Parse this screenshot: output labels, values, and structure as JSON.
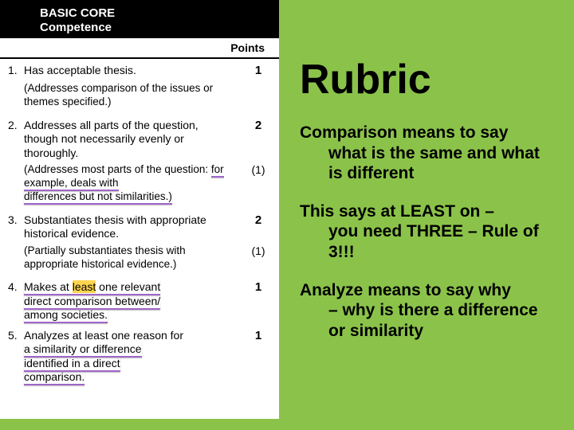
{
  "colors": {
    "accent_green": "#8bc34a",
    "underline_purple": "#a066c9",
    "highlight_yellow": "#ffd54f",
    "header_bg": "#000000",
    "header_text": "#ffffff"
  },
  "left": {
    "header_line1": "BASIC CORE",
    "header_line2": "Competence",
    "points_label": "Points",
    "items": [
      {
        "num": "1.",
        "text": "Has acceptable thesis.",
        "points": "1",
        "sub_text_a": "(Addresses comparison of the",
        "sub_text_b": "issues or themes specified.)",
        "sub_points": ""
      },
      {
        "num": "2.",
        "text": "Addresses all parts of the question, though not necessarily evenly or thoroughly.",
        "points": "2",
        "sub_text_a": "(Addresses most parts of the question:",
        "sub_text_b": "for example, deals with",
        "sub_text_c": "differences but not similarities.)",
        "sub_points": "(1)"
      },
      {
        "num": "3.",
        "text": "Substantiates thesis with appropriate historical evidence.",
        "points": "2",
        "sub_text_a": "(Partially substantiates thesis with appropriate historical evidence.)",
        "sub_points": "(1)"
      },
      {
        "num": "4.",
        "text_a": "Makes at",
        "text_hl": "least",
        "text_b": "one relevant",
        "text_c": "direct comparison between/",
        "text_d": "among societies.",
        "points": "1"
      },
      {
        "num": "5.",
        "text_a": "Analyzes at least one reason for",
        "text_b": "a similarity or difference",
        "text_c": "identified in a direct",
        "text_d": "comparison.",
        "points": "1"
      }
    ]
  },
  "right": {
    "title": "Rubric",
    "p1_a": "Comparison means to say",
    "p1_b": "what is the same and what is different",
    "p2_a": "This says at LEAST on –",
    "p2_b": "you need THREE – Rule of 3!!!",
    "p3_a": "Analyze means to say why",
    "p3_b": "– why is there a difference or similarity"
  }
}
